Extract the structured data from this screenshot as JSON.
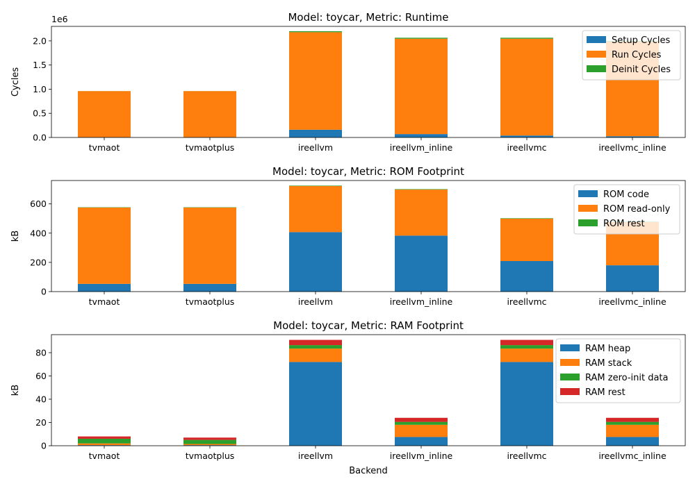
{
  "chart_data": [
    {
      "type": "bar",
      "stacked": true,
      "title": "Model: toycar, Metric: Runtime",
      "xlabel": "",
      "ylabel": "Cycles",
      "y_offset_label": "1e6",
      "categories": [
        "tvmaot",
        "tvmaotplus",
        "ireellvm",
        "ireellvm_inline",
        "ireellvmc",
        "ireellvmc_inline"
      ],
      "yticks": [
        "0.0",
        "0.5",
        "1.0",
        "1.5",
        "2.0"
      ],
      "ytick_values": [
        0,
        500000,
        1000000,
        1500000,
        2000000
      ],
      "ylim": [
        0,
        2300000
      ],
      "legend_position": "top-right",
      "grid": false,
      "series": [
        {
          "name": "Setup Cycles",
          "color": "#1f77b4",
          "values": [
            5000,
            5000,
            160000,
            70000,
            40000,
            25000
          ]
        },
        {
          "name": "Run Cycles",
          "color": "#ff7f0e",
          "values": [
            955000,
            955000,
            2020000,
            1975000,
            2005000,
            1960000
          ]
        },
        {
          "name": "Deinit Cycles",
          "color": "#2ca02c",
          "values": [
            1000,
            1000,
            20000,
            20000,
            20000,
            15000
          ]
        }
      ]
    },
    {
      "type": "bar",
      "stacked": true,
      "title": "Model: toycar, Metric: ROM Footprint",
      "xlabel": "",
      "ylabel": "kB",
      "categories": [
        "tvmaot",
        "tvmaotplus",
        "ireellvm",
        "ireellvm_inline",
        "ireellvmc",
        "ireellvmc_inline"
      ],
      "yticks": [
        "0",
        "200",
        "400",
        "600"
      ],
      "ytick_values": [
        0,
        200,
        400,
        600
      ],
      "ylim": [
        0,
        760
      ],
      "legend_position": "top-right",
      "grid": false,
      "series": [
        {
          "name": "ROM code",
          "color": "#1f77b4",
          "values": [
            53,
            53,
            407,
            383,
            209,
            180
          ]
        },
        {
          "name": "ROM read-only",
          "color": "#ff7f0e",
          "values": [
            522,
            522,
            315,
            315,
            290,
            295
          ]
        },
        {
          "name": "ROM rest",
          "color": "#2ca02c",
          "values": [
            2,
            2,
            3,
            3,
            3,
            3
          ]
        }
      ]
    },
    {
      "type": "bar",
      "stacked": true,
      "title": "Model: toycar, Metric: RAM Footprint",
      "xlabel": "Backend",
      "ylabel": "kB",
      "categories": [
        "tvmaot",
        "tvmaotplus",
        "ireellvm",
        "ireellvm_inline",
        "ireellvmc",
        "ireellvmc_inline"
      ],
      "yticks": [
        "0",
        "20",
        "40",
        "60",
        "80"
      ],
      "ytick_values": [
        0,
        20,
        40,
        60,
        80
      ],
      "ylim": [
        0,
        95.5
      ],
      "legend_position": "top-right",
      "grid": false,
      "series": [
        {
          "name": "RAM heap",
          "color": "#1f77b4",
          "values": [
            0.5,
            0.5,
            72,
            7.5,
            72,
            7.5
          ]
        },
        {
          "name": "RAM stack",
          "color": "#ff7f0e",
          "values": [
            1.5,
            1,
            11.5,
            10.5,
            11.5,
            10.5
          ]
        },
        {
          "name": "RAM zero-init data",
          "color": "#2ca02c",
          "values": [
            4,
            3.5,
            3,
            2.5,
            3,
            2.5
          ]
        },
        {
          "name": "RAM rest",
          "color": "#d62728",
          "values": [
            2,
            2,
            4.5,
            3.5,
            4.5,
            3.5
          ]
        }
      ]
    }
  ]
}
